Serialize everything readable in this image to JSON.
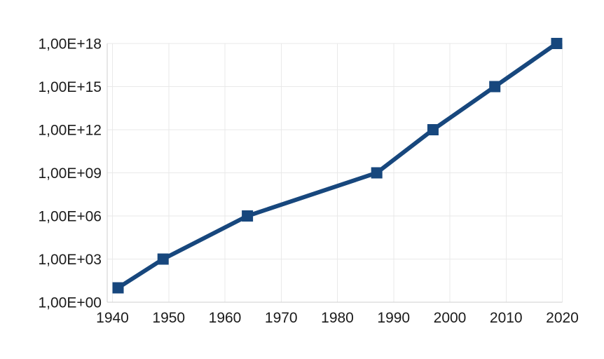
{
  "chart_data": {
    "type": "line",
    "x": [
      1941,
      1949,
      1964,
      1987,
      1997,
      2008,
      2019
    ],
    "y": [
      10.0,
      1000.0,
      1000000.0,
      1000000000.0,
      1000000000000.0,
      1000000000000000.0,
      1e+18
    ],
    "y_exponents": [
      1,
      3,
      6,
      9,
      12,
      15,
      18
    ],
    "y_scale": "log",
    "x_ticks": [
      1940,
      1950,
      1960,
      1970,
      1980,
      1990,
      2000,
      2010,
      2020
    ],
    "x_tick_labels": [
      "1940",
      "1950",
      "1960",
      "1970",
      "1980",
      "1990",
      "2000",
      "2010",
      "2020"
    ],
    "y_tick_exponents": [
      0,
      3,
      6,
      9,
      12,
      15,
      18
    ],
    "y_tick_labels": [
      "1,00E+00",
      "1,00E+03",
      "1,00E+06",
      "1,00E+09",
      "1,00E+12",
      "1,00E+15",
      "1,00E+18"
    ],
    "xlim": [
      1939.1,
      2020
    ],
    "ylim_exponents": [
      0,
      18
    ],
    "grid": true,
    "legend": false,
    "marker": {
      "shape": "square",
      "size": 16
    },
    "line_width": 6,
    "colors": {
      "series": "#17477d",
      "grid": "#e9e9e9",
      "axis": "#cfcfcf",
      "text": "#1b1b1b",
      "background": "#ffffff"
    }
  }
}
